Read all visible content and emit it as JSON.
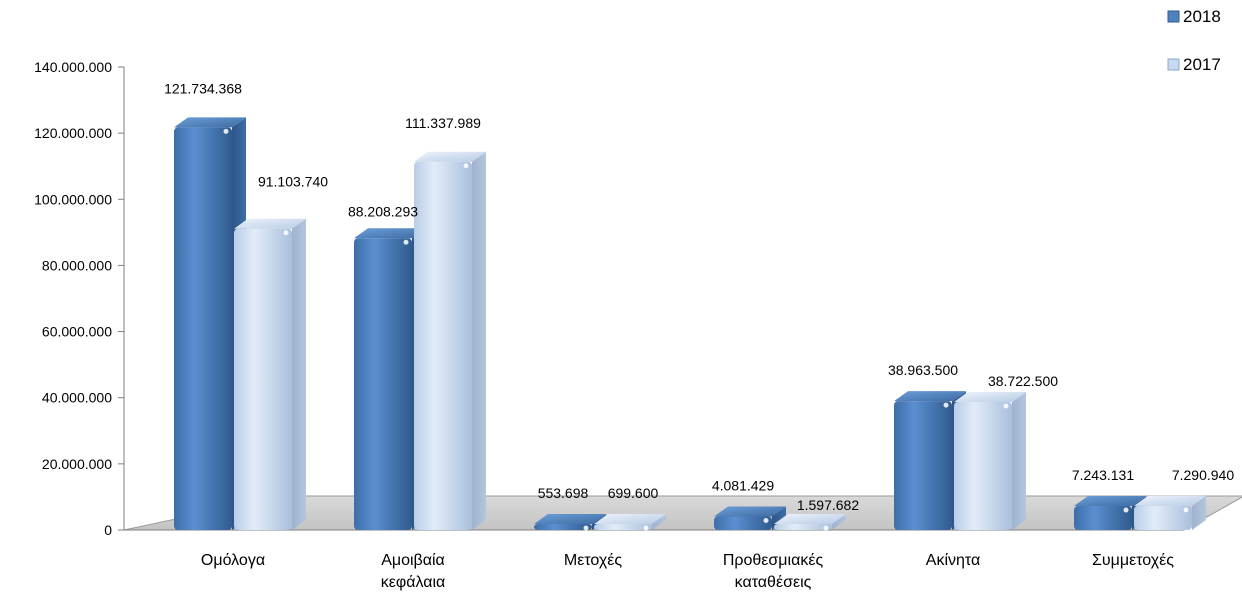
{
  "chart_data": {
    "type": "bar",
    "categories": [
      [
        "Ομόλογα"
      ],
      [
        "Αμοιβαία",
        "κεφάλαια"
      ],
      [
        "Μετοχές"
      ],
      [
        "Προθεσμιακές",
        "καταθέσεις"
      ],
      [
        "Ακίνητα"
      ],
      [
        "Συμμετοχές"
      ]
    ],
    "series": [
      {
        "name": "2018",
        "values": [
          121734368,
          88208293,
          553698,
          4081429,
          38963500,
          7243131
        ],
        "labels": [
          "121.734.368",
          "88.208.293",
          "553.698",
          "4.081.429",
          "38.963.500",
          "7.243.131"
        ],
        "color": "#4f81bd"
      },
      {
        "name": "2017",
        "values": [
          91103740,
          111337989,
          699600,
          1597682,
          38722500,
          7290940
        ],
        "labels": [
          "91.103.740",
          "111.337.989",
          "699.600",
          "1.597.682",
          "38.722.500",
          "7.290.940"
        ],
        "color": "#c6d9f1"
      }
    ],
    "yticks": [
      "0",
      "20.000.000",
      "40.000.000",
      "60.000.000",
      "80.000.000",
      "100.000.000",
      "120.000.000",
      "140.000.000"
    ],
    "ylim": [
      0,
      140000000
    ],
    "grid": false,
    "legend_position": "top-right",
    "three_d": true
  }
}
